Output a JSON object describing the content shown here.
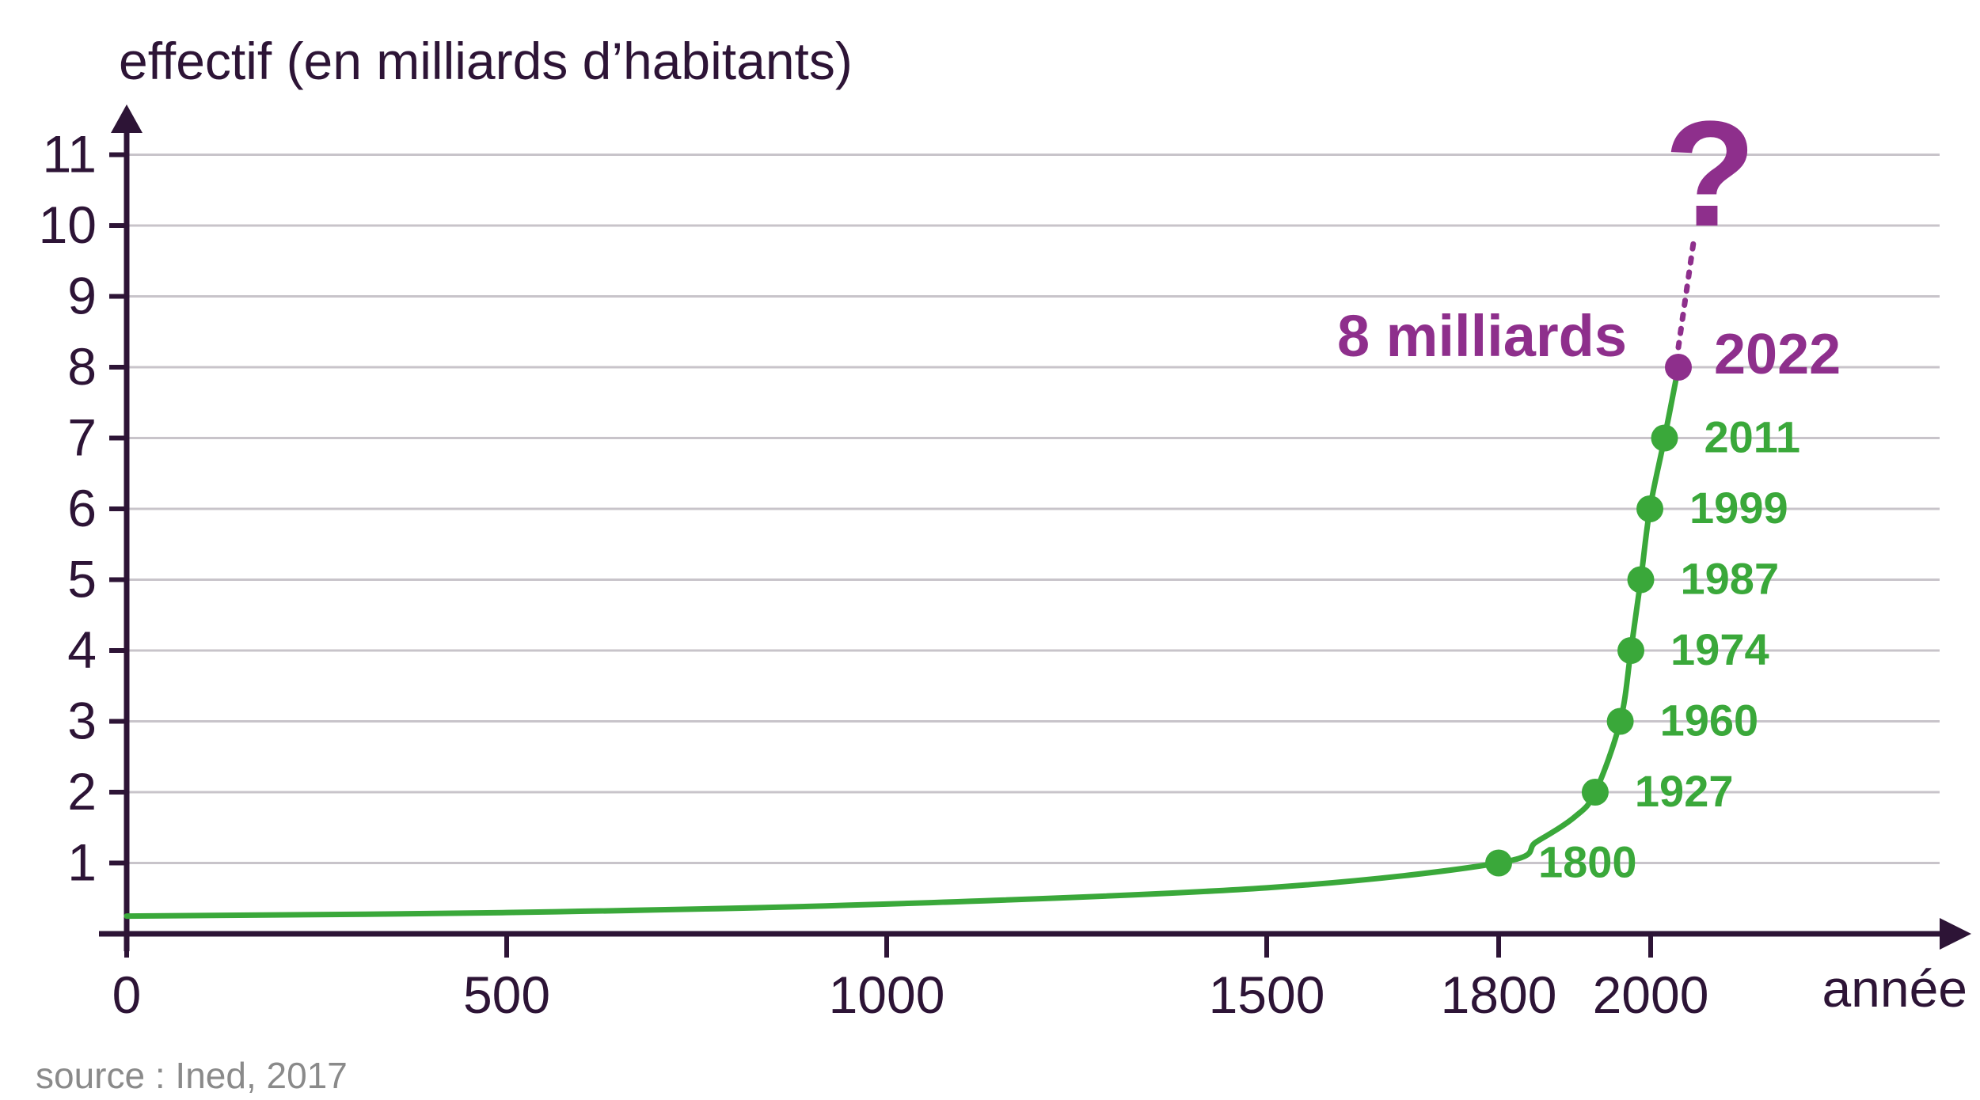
{
  "colors": {
    "axis": "#2d1436",
    "grid": "#c8c4ca",
    "curve": "#3aa83a",
    "highlight": "#8e2f8c",
    "source": "#8a8a8a"
  },
  "chart_data": {
    "type": "line",
    "title": "",
    "ylabel": "effectif (en milliards d’habitants)",
    "xlabel": "année",
    "ylim": [
      0,
      11
    ],
    "yticks": [
      "1",
      "2",
      "3",
      "4",
      "5",
      "6",
      "7",
      "8",
      "9",
      "10",
      "11"
    ],
    "xticks": [
      {
        "value": 0,
        "label": "0"
      },
      {
        "value": 500,
        "label": "500"
      },
      {
        "value": 1000,
        "label": "1000"
      },
      {
        "value": 1500,
        "label": "1500"
      },
      {
        "value": 1800,
        "label": "1800"
      },
      {
        "value": 2000,
        "label": "2000"
      }
    ],
    "grid": true,
    "curve": [
      {
        "x": 0,
        "y": 0.25
      },
      {
        "x": 500,
        "y": 0.3
      },
      {
        "x": 1000,
        "y": 0.42
      },
      {
        "x": 1500,
        "y": 0.65
      },
      {
        "x": 1800,
        "y": 1.0
      },
      {
        "x": 1850,
        "y": 1.3
      },
      {
        "x": 1900,
        "y": 1.65
      },
      {
        "x": 1927,
        "y": 2.0
      },
      {
        "x": 1960,
        "y": 3.0
      },
      {
        "x": 1974,
        "y": 4.0
      },
      {
        "x": 1987,
        "y": 5.0
      },
      {
        "x": 1999,
        "y": 6.0
      },
      {
        "x": 2011,
        "y": 7.0
      },
      {
        "x": 2022,
        "y": 8.0
      }
    ],
    "labeled_points": [
      {
        "year": 1800,
        "label": "1800",
        "value": 1
      },
      {
        "year": 1927,
        "label": "1927",
        "value": 2
      },
      {
        "year": 1960,
        "label": "1960",
        "value": 3
      },
      {
        "year": 1974,
        "label": "1974",
        "value": 4
      },
      {
        "year": 1987,
        "label": "1987",
        "value": 5
      },
      {
        "year": 1999,
        "label": "1999",
        "value": 6
      },
      {
        "year": 2011,
        "label": "2011",
        "value": 7
      }
    ],
    "highlight": {
      "year": 2022,
      "label": "2022",
      "value": 8,
      "annotation": "8 milliards"
    },
    "projection": {
      "from_value": 8,
      "to_value": 10,
      "symbol": "?"
    },
    "source": "source : Ined, 2017"
  }
}
